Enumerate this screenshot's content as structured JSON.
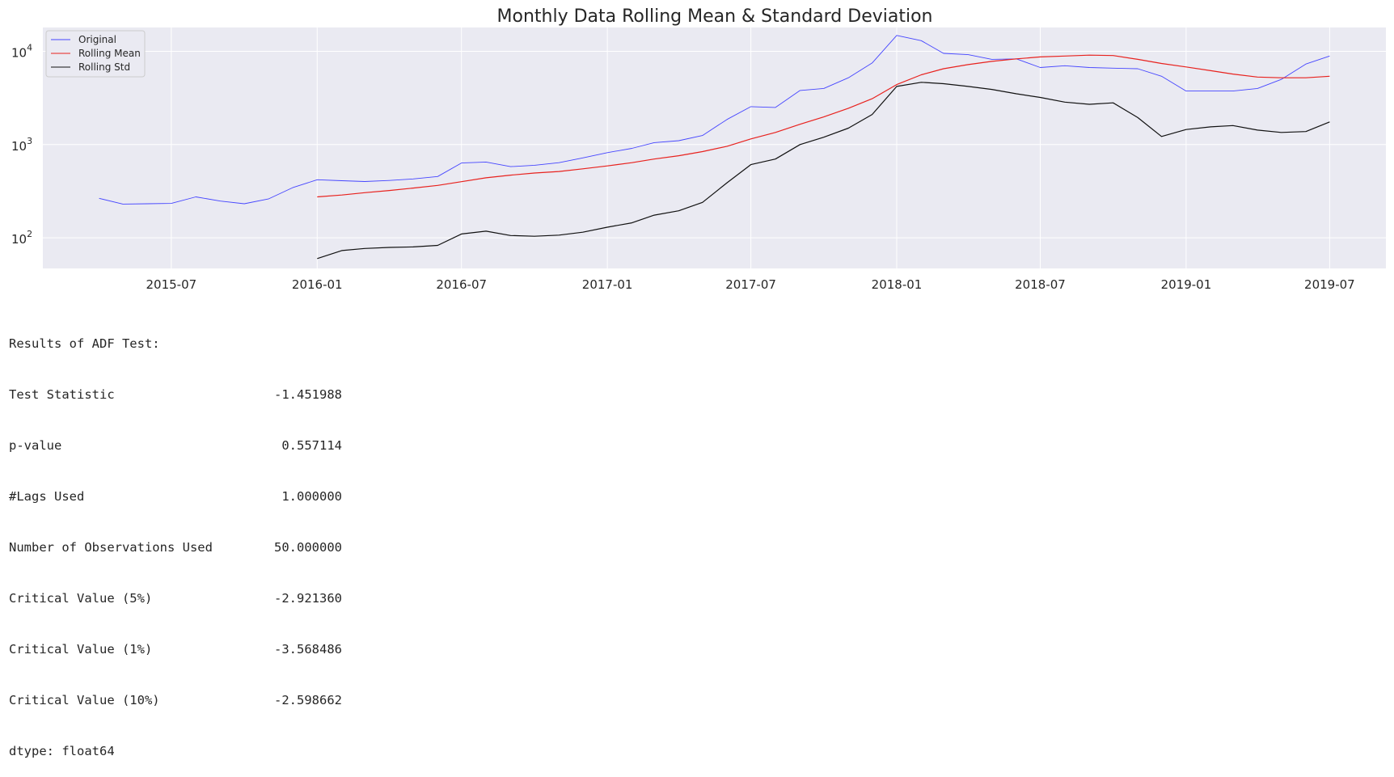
{
  "chart_data": {
    "type": "line",
    "title": "Monthly Data Rolling Mean & Standard Deviation",
    "xlabel": "",
    "ylabel": "",
    "y_scale": "log",
    "ylim": [
      47,
      18000
    ],
    "xlim": [
      "2015-01-20",
      "2019-09-10"
    ],
    "grid": true,
    "legend_position": "top-left",
    "x_ticks": [
      "2015-07",
      "2016-01",
      "2016-07",
      "2017-01",
      "2017-07",
      "2018-01",
      "2018-07",
      "2019-01",
      "2019-07"
    ],
    "y_ticks": [
      {
        "value": 100,
        "base": "10",
        "exp": "2"
      },
      {
        "value": 1000,
        "base": "10",
        "exp": "3"
      },
      {
        "value": 10000,
        "base": "10",
        "exp": "4"
      }
    ],
    "x": [
      "2015-04-01",
      "2015-05-01",
      "2015-06-01",
      "2015-07-01",
      "2015-08-01",
      "2015-09-01",
      "2015-10-01",
      "2015-11-01",
      "2015-12-01",
      "2016-01-01",
      "2016-02-01",
      "2016-03-01",
      "2016-04-01",
      "2016-05-01",
      "2016-06-01",
      "2016-07-01",
      "2016-08-01",
      "2016-09-01",
      "2016-10-01",
      "2016-11-01",
      "2016-12-01",
      "2017-01-01",
      "2017-02-01",
      "2017-03-01",
      "2017-04-01",
      "2017-05-01",
      "2017-06-01",
      "2017-07-01",
      "2017-08-01",
      "2017-09-01",
      "2017-10-01",
      "2017-11-01",
      "2017-12-01",
      "2018-01-01",
      "2018-02-01",
      "2018-03-01",
      "2018-04-01",
      "2018-05-01",
      "2018-06-01",
      "2018-07-01",
      "2018-08-01",
      "2018-09-01",
      "2018-10-01",
      "2018-11-01",
      "2018-12-01",
      "2019-01-01",
      "2019-02-01",
      "2019-03-01",
      "2019-04-01",
      "2019-05-01",
      "2019-06-01",
      "2019-07-01"
    ],
    "series": [
      {
        "name": "Original",
        "color": "#4545ff",
        "values": [
          265,
          230,
          232,
          234,
          275,
          248,
          232,
          262,
          345,
          420,
          410,
          402,
          412,
          428,
          455,
          635,
          650,
          580,
          600,
          640,
          720,
          820,
          910,
          1050,
          1100,
          1250,
          1860,
          2550,
          2500,
          3800,
          4000,
          5200,
          7500,
          14800,
          13000,
          9500,
          9200,
          8200,
          8300,
          6700,
          7000,
          6700,
          6600,
          6500,
          5400,
          3750,
          3750,
          3750,
          4000,
          5000,
          7300,
          8900
        ]
      },
      {
        "name": "Rolling Mean",
        "color": "#e8221e",
        "values": [
          null,
          null,
          null,
          null,
          null,
          null,
          null,
          null,
          null,
          275,
          288,
          305,
          322,
          342,
          365,
          400,
          440,
          470,
          495,
          515,
          550,
          590,
          640,
          700,
          760,
          840,
          960,
          1150,
          1350,
          1650,
          1980,
          2450,
          3100,
          4400,
          5600,
          6500,
          7200,
          7800,
          8300,
          8700,
          8900,
          9100,
          9000,
          8200,
          7400,
          6800,
          6200,
          5700,
          5300,
          5200,
          5200,
          5400
        ]
      },
      {
        "name": "Rolling Std",
        "color": "#111111",
        "values": [
          null,
          null,
          null,
          null,
          null,
          null,
          null,
          null,
          null,
          60,
          73,
          77,
          79,
          80,
          83,
          110,
          118,
          106,
          104,
          107,
          115,
          130,
          145,
          175,
          195,
          240,
          390,
          610,
          700,
          1000,
          1200,
          1500,
          2100,
          4200,
          4650,
          4500,
          4200,
          3900,
          3500,
          3200,
          2850,
          2700,
          2800,
          1950,
          1220,
          1450,
          1550,
          1600,
          1430,
          1350,
          1380,
          1750
        ]
      }
    ]
  },
  "adf_results": {
    "header": "Results of ADF Test:",
    "rows": [
      {
        "label": "Test Statistic",
        "value": "-1.451988"
      },
      {
        "label": "p-value",
        "value": "0.557114"
      },
      {
        "label": "#Lags Used",
        "value": "1.000000"
      },
      {
        "label": "Number of Observations Used",
        "value": "50.000000"
      },
      {
        "label": "Critical Value (5%)",
        "value": "-2.921360"
      },
      {
        "label": "Critical Value (1%)",
        "value": "-3.568486"
      },
      {
        "label": "Critical Value (10%)",
        "value": "-2.598662"
      }
    ],
    "footer": "dtype: float64"
  },
  "colors": {
    "plot_background": "#eaeaf2",
    "grid": "#ffffff"
  }
}
